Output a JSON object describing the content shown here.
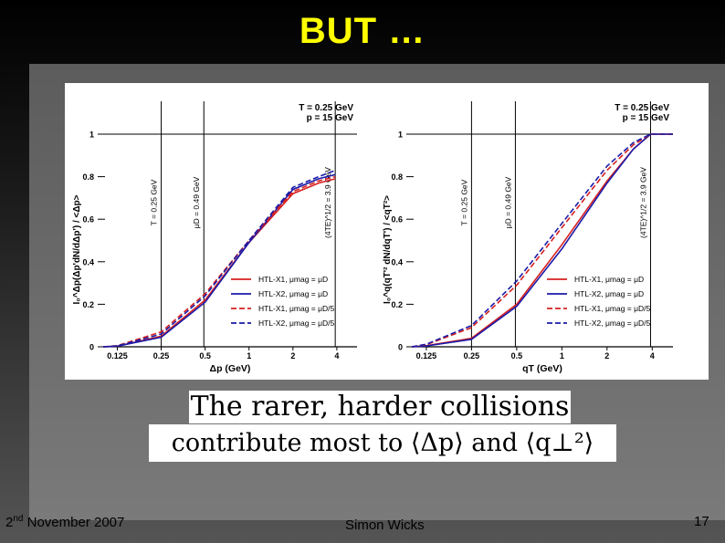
{
  "slide": {
    "title": "BUT …",
    "caption_line1": "The rarer, harder collisions",
    "caption_line2": "contribute most to ⟨Δp⟩ and ⟨q⊥²⟩",
    "footer_date_pre": "2",
    "footer_date_sup": "nd",
    "footer_date_post": " November 2007",
    "footer_author": "Simon Wicks",
    "page_number": "17"
  },
  "colors": {
    "red": "#d62020",
    "blue": "#1a1aa8",
    "title": "#ffff00"
  },
  "chart_data": [
    {
      "type": "line",
      "xscale": "log",
      "xlim": [
        0.1,
        5.5
      ],
      "ylim": [
        0,
        1
      ],
      "xticks": [
        "0.125",
        "0.25",
        "0.5",
        "1",
        "2",
        "4"
      ],
      "xtick_values": [
        0.125,
        0.25,
        0.5,
        1,
        2,
        4
      ],
      "yticks": [
        "0",
        "0.2",
        "0.4",
        "0.6",
        "0.8",
        "1"
      ],
      "ytick_values": [
        0,
        0.2,
        0.4,
        0.6,
        0.8,
        1
      ],
      "xlabel": "Δp (GeV)",
      "ylabel": "I₀^Δp(Δp'dN/dΔp') / <Δp>",
      "annotation": [
        "T = 0.25 GeV",
        "p = 15 GeV"
      ],
      "vlines": [
        {
          "x": 0.25,
          "label": "T = 0.25 GeV"
        },
        {
          "x": 0.49,
          "label": "μD = 0.49 GeV"
        },
        {
          "x": 3.9,
          "label": "(4TE)^1/2 = 3.9 GeV"
        }
      ],
      "legend": {
        "placement": "bottom-right"
      },
      "series": [
        {
          "name": "HTL-X1, μmag = μD",
          "color": "red",
          "dash": false,
          "x": [
            0.1,
            0.125,
            0.25,
            0.5,
            1,
            2,
            3,
            3.9
          ],
          "y": [
            0,
            0.003,
            0.05,
            0.22,
            0.49,
            0.72,
            0.77,
            0.79
          ]
        },
        {
          "name": "HTL-X2, μmag = μD",
          "color": "blue",
          "dash": false,
          "x": [
            0.1,
            0.125,
            0.25,
            0.5,
            1,
            2,
            3,
            3.9
          ],
          "y": [
            0,
            0.003,
            0.045,
            0.21,
            0.49,
            0.74,
            0.79,
            0.81
          ]
        },
        {
          "name": "HTL-X1, μmag = μD/5",
          "color": "red",
          "dash": true,
          "x": [
            0.1,
            0.125,
            0.25,
            0.5,
            1,
            2,
            3,
            3.9
          ],
          "y": [
            0,
            0.005,
            0.07,
            0.25,
            0.5,
            0.73,
            0.78,
            0.8
          ]
        },
        {
          "name": "HTL-X2, μmag = μD/5",
          "color": "blue",
          "dash": true,
          "x": [
            0.1,
            0.125,
            0.25,
            0.5,
            1,
            2,
            3,
            3.9
          ],
          "y": [
            0,
            0.004,
            0.06,
            0.24,
            0.5,
            0.75,
            0.8,
            0.83
          ]
        }
      ]
    },
    {
      "type": "line",
      "xscale": "log",
      "xlim": [
        0.1,
        5.5
      ],
      "ylim": [
        0,
        1
      ],
      "xticks": [
        "0.125",
        "0.25",
        "0.5",
        "1",
        "2",
        "4"
      ],
      "xtick_values": [
        0.125,
        0.25,
        0.5,
        1,
        2,
        4
      ],
      "yticks": [
        "0",
        "0.2",
        "0.4",
        "0.6",
        "0.8",
        "1"
      ],
      "ytick_values": [
        0,
        0.2,
        0.4,
        0.6,
        0.8,
        1
      ],
      "xlabel": "qT (GeV)",
      "ylabel": "I₀^q(qT'² dN/dqT') / <qT²>",
      "annotation": [
        "T = 0.25 GeV",
        "p = 15 GeV"
      ],
      "vlines": [
        {
          "x": 0.25,
          "label": "T = 0.25 GeV"
        },
        {
          "x": 0.49,
          "label": "μD = 0.49 GeV"
        },
        {
          "x": 3.9,
          "label": "(4TE)^1/2 = 3.9 GeV"
        }
      ],
      "legend": {
        "placement": "bottom-right"
      },
      "series": [
        {
          "name": "HTL-X1, μmag = μD",
          "color": "red",
          "dash": false,
          "x": [
            0.1,
            0.125,
            0.25,
            0.5,
            1,
            2,
            3,
            3.9,
            5.5
          ],
          "y": [
            0,
            0.005,
            0.04,
            0.2,
            0.48,
            0.78,
            0.93,
            1,
            1
          ]
        },
        {
          "name": "HTL-X2, μmag = μD",
          "color": "blue",
          "dash": false,
          "x": [
            0.1,
            0.125,
            0.25,
            0.5,
            1,
            2,
            3,
            3.9,
            5.5
          ],
          "y": [
            0,
            0.004,
            0.035,
            0.19,
            0.46,
            0.77,
            0.93,
            1,
            1
          ]
        },
        {
          "name": "HTL-X1, μmag = μD/5",
          "color": "red",
          "dash": true,
          "x": [
            0.1,
            0.125,
            0.25,
            0.5,
            1,
            2,
            3,
            3.9,
            5.5
          ],
          "y": [
            0,
            0.01,
            0.09,
            0.29,
            0.56,
            0.83,
            0.95,
            1,
            1
          ]
        },
        {
          "name": "HTL-X2, μmag = μD/5",
          "color": "blue",
          "dash": true,
          "x": [
            0.1,
            0.125,
            0.25,
            0.5,
            1,
            2,
            3,
            3.9,
            5.5
          ],
          "y": [
            0,
            0.012,
            0.1,
            0.31,
            0.58,
            0.85,
            0.96,
            1,
            1
          ]
        }
      ]
    }
  ]
}
